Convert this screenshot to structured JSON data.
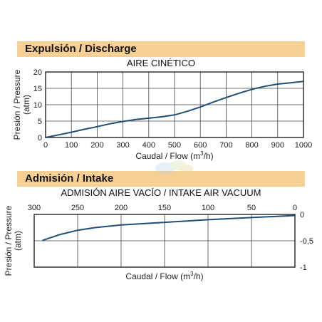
{
  "banners": {
    "discharge": "Expulsión / Discharge",
    "intake": "Admisión / Intake"
  },
  "colors": {
    "banner": "#f6cf95",
    "curve": "#1f4e79",
    "grid": "#444444"
  },
  "chart_data": [
    {
      "type": "line",
      "title": "AIRE CINÉTICO",
      "xlabel": "Caudal / Flow (m³/h)",
      "ylabel": "Presión / Pressure (atm)",
      "xlim": [
        0,
        1000
      ],
      "ylim": [
        0,
        20
      ],
      "x_ticks": [
        0,
        100,
        200,
        300,
        400,
        500,
        600,
        700,
        800,
        900,
        1000
      ],
      "y_ticks": [
        0,
        5,
        10,
        15,
        20
      ],
      "grid": true,
      "series": [
        {
          "x": [
            0,
            50,
            100,
            150,
            200,
            250,
            300,
            350,
            400,
            450,
            500,
            550,
            600,
            650,
            700,
            750,
            800,
            850,
            900,
            950,
            1000
          ],
          "y": [
            0,
            0.8,
            1.6,
            2.5,
            3.3,
            4.2,
            4.9,
            5.5,
            5.9,
            6.3,
            6.9,
            8.0,
            9.3,
            10.8,
            12.2,
            13.5,
            14.7,
            15.6,
            16.3,
            16.7,
            17.1
          ]
        }
      ]
    },
    {
      "type": "line",
      "title": "ADMISIÓN AIRE VACÍO / INTAKE AIR VACUUM",
      "xlabel": "Caudal / Flow (m³/h)",
      "ylabel": "Presión / Pressure (atm)",
      "xlim": [
        300,
        0
      ],
      "ylim": [
        -1,
        0
      ],
      "x_ticks": [
        300,
        250,
        200,
        150,
        100,
        50,
        0
      ],
      "y_ticks": [
        0,
        -0.5,
        -1
      ],
      "y_tick_labels": [
        "0",
        "-0,5",
        "-1"
      ],
      "grid": true,
      "series": [
        {
          "x": [
            290,
            270,
            250,
            230,
            200,
            150,
            100,
            50,
            0
          ],
          "y": [
            -0.49,
            -0.38,
            -0.3,
            -0.25,
            -0.2,
            -0.15,
            -0.1,
            -0.06,
            -0.02
          ]
        }
      ]
    }
  ]
}
